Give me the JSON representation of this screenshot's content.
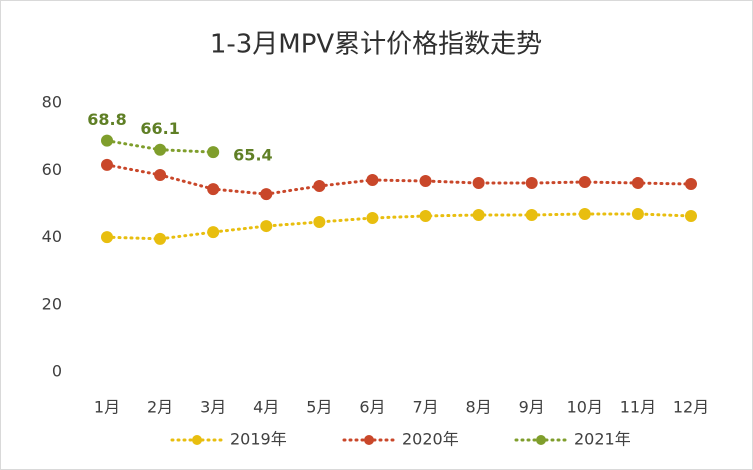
{
  "chart_data": {
    "type": "line",
    "title": "1-3月MPV累计价格指数走势",
    "categories": [
      "1月",
      "2月",
      "3月",
      "4月",
      "5月",
      "6月",
      "7月",
      "8月",
      "9月",
      "10月",
      "11月",
      "12月"
    ],
    "series": [
      {
        "name": "2019年",
        "color": "#e8be0f",
        "values": [
          40.1,
          39.6,
          41.6,
          43.4,
          44.6,
          45.8,
          46.4,
          46.7,
          46.7,
          47.0,
          47.0,
          46.4
        ]
      },
      {
        "name": "2020年",
        "color": "#c9472a",
        "values": [
          61.6,
          58.6,
          54.4,
          52.9,
          55.3,
          57.1,
          56.8,
          56.2,
          56.2,
          56.5,
          56.2,
          55.9
        ]
      },
      {
        "name": "2021年",
        "color": "#7f9e2c",
        "values": [
          68.8,
          66.1,
          65.4,
          null,
          null,
          null,
          null,
          null,
          null,
          null,
          null,
          null
        ],
        "data_labels": true
      }
    ],
    "ylim": [
      0,
      80
    ],
    "yticks": [
      0,
      20,
      40,
      60,
      80
    ],
    "grid": false
  }
}
